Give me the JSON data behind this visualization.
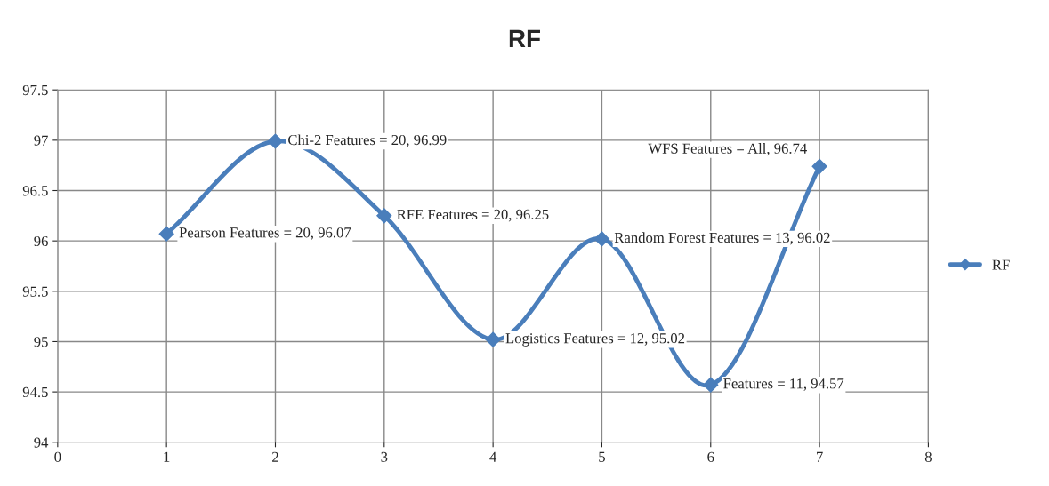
{
  "chart_data": {
    "type": "line",
    "title": "RF",
    "x": [
      1,
      2,
      3,
      4,
      5,
      6,
      7
    ],
    "series": [
      {
        "name": "RF",
        "color": "#4a7ebb",
        "values": [
          96.07,
          96.99,
          96.25,
          95.02,
          96.02,
          94.57,
          96.74
        ]
      }
    ],
    "xlim": [
      0,
      8
    ],
    "xticks": [
      0,
      1,
      2,
      3,
      4,
      5,
      6,
      7,
      8
    ],
    "ylim": [
      94,
      97.5
    ],
    "yticks": [
      94,
      94.5,
      95,
      95.5,
      96,
      96.5,
      97,
      97.5
    ],
    "grid": true,
    "legend": "right",
    "marker": "diamond",
    "line_style": "solid",
    "annotations": [
      {
        "text": "Pearson Features = 20, 96.07",
        "x": 1,
        "y": 96.07
      },
      {
        "text": "Chi-2 Features = 20, 96.99",
        "x": 2,
        "y": 96.99
      },
      {
        "text": "RFE Features = 20, 96.25",
        "x": 3,
        "y": 96.25
      },
      {
        "text": "Logistics Features = 12, 95.02",
        "x": 4,
        "y": 95.02
      },
      {
        "text": "Random Forest Features = 13, 96.02",
        "x": 5,
        "y": 96.02
      },
      {
        "text": "Features = 11, 94.57",
        "x": 6,
        "y": 94.57
      },
      {
        "text": "WFS Features = All, 96.74",
        "x": 7,
        "y": 96.74
      }
    ]
  }
}
